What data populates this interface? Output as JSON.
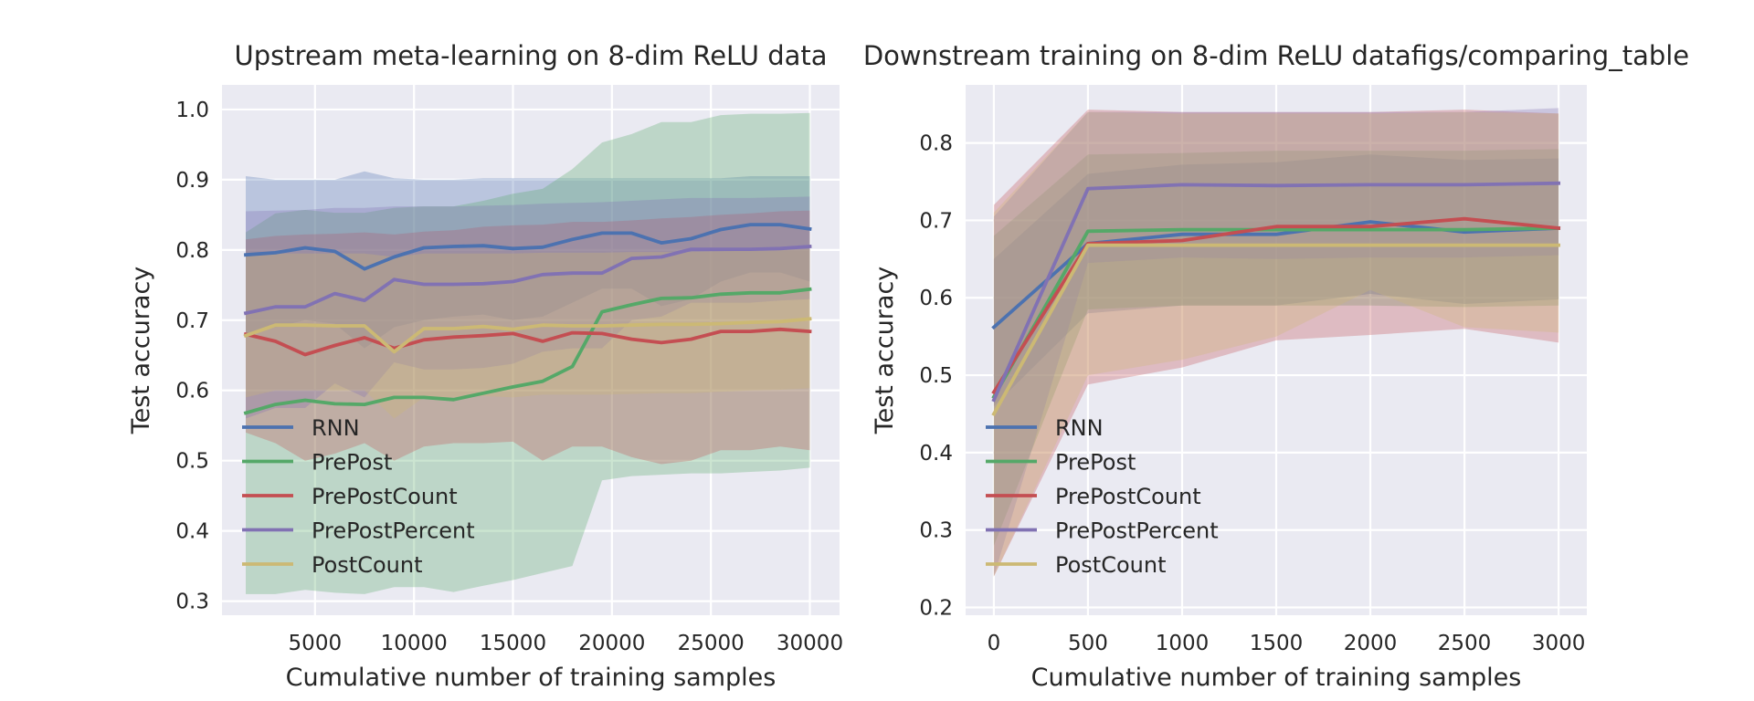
{
  "chart_data": [
    {
      "type": "line",
      "title": "Upstream meta-learning on 8-dim ReLU data",
      "xlabel": "Cumulative number of training samples",
      "ylabel": "Test accuracy",
      "xlim": [
        300,
        31500
      ],
      "ylim": [
        0.28,
        1.035
      ],
      "xticks": [
        5000,
        10000,
        15000,
        20000,
        25000,
        30000
      ],
      "yticks": [
        0.3,
        0.4,
        0.5,
        0.6,
        0.7,
        0.8,
        0.9,
        1.0
      ],
      "grid": true,
      "legend_position": "lower-left",
      "x": [
        1500,
        3000,
        4500,
        6000,
        7500,
        9000,
        10500,
        12000,
        13500,
        15000,
        16500,
        18000,
        19500,
        21000,
        22500,
        24000,
        25500,
        27000,
        28500,
        30000
      ],
      "series": [
        {
          "name": "RNN",
          "color": "#4c72b0",
          "values": [
            0.793,
            0.796,
            0.803,
            0.798,
            0.773,
            0.79,
            0.803,
            0.805,
            0.806,
            0.802,
            0.804,
            0.815,
            0.824,
            0.824,
            0.81,
            0.816,
            0.829,
            0.836,
            0.836,
            0.83
          ],
          "upper": [
            0.905,
            0.9,
            0.9,
            0.9,
            0.912,
            0.902,
            0.9,
            0.9,
            0.902,
            0.902,
            0.902,
            0.902,
            0.902,
            0.902,
            0.902,
            0.902,
            0.902,
            0.905,
            0.905,
            0.905
          ],
          "lower": [
            0.68,
            0.69,
            0.7,
            0.695,
            0.66,
            0.69,
            0.7,
            0.705,
            0.708,
            0.7,
            0.705,
            0.725,
            0.745,
            0.745,
            0.72,
            0.73,
            0.755,
            0.768,
            0.768,
            0.755
          ]
        },
        {
          "name": "PrePost",
          "color": "#55a868",
          "values": [
            0.568,
            0.58,
            0.586,
            0.581,
            0.58,
            0.59,
            0.59,
            0.587,
            0.596,
            0.605,
            0.613,
            0.634,
            0.712,
            0.722,
            0.731,
            0.732,
            0.737,
            0.739,
            0.739,
            0.744
          ],
          "upper": [
            0.825,
            0.852,
            0.857,
            0.853,
            0.853,
            0.86,
            0.862,
            0.862,
            0.87,
            0.88,
            0.887,
            0.915,
            0.953,
            0.965,
            0.982,
            0.982,
            0.992,
            0.994,
            0.994,
            0.995
          ],
          "lower": [
            0.31,
            0.31,
            0.316,
            0.312,
            0.31,
            0.32,
            0.32,
            0.313,
            0.322,
            0.33,
            0.34,
            0.35,
            0.472,
            0.478,
            0.48,
            0.482,
            0.482,
            0.484,
            0.486,
            0.49
          ]
        },
        {
          "name": "PrePostCount",
          "color": "#c44e52",
          "values": [
            0.68,
            0.67,
            0.651,
            0.664,
            0.675,
            0.66,
            0.672,
            0.676,
            0.678,
            0.681,
            0.67,
            0.682,
            0.681,
            0.673,
            0.668,
            0.673,
            0.684,
            0.684,
            0.687,
            0.684
          ],
          "upper": [
            0.815,
            0.82,
            0.822,
            0.823,
            0.825,
            0.822,
            0.826,
            0.828,
            0.833,
            0.835,
            0.836,
            0.84,
            0.84,
            0.842,
            0.845,
            0.847,
            0.85,
            0.852,
            0.855,
            0.856
          ],
          "lower": [
            0.54,
            0.525,
            0.5,
            0.51,
            0.525,
            0.5,
            0.52,
            0.525,
            0.525,
            0.527,
            0.5,
            0.52,
            0.52,
            0.505,
            0.495,
            0.5,
            0.515,
            0.515,
            0.52,
            0.515
          ]
        },
        {
          "name": "PrePostPercent",
          "color": "#8172b3",
          "values": [
            0.71,
            0.719,
            0.719,
            0.738,
            0.728,
            0.758,
            0.751,
            0.751,
            0.752,
            0.755,
            0.765,
            0.767,
            0.767,
            0.788,
            0.79,
            0.801,
            0.801,
            0.801,
            0.802,
            0.805
          ],
          "upper": [
            0.855,
            0.856,
            0.857,
            0.86,
            0.86,
            0.862,
            0.862,
            0.862,
            0.863,
            0.864,
            0.866,
            0.867,
            0.868,
            0.87,
            0.872,
            0.874,
            0.874,
            0.874,
            0.875,
            0.876
          ],
          "lower": [
            0.56,
            0.575,
            0.575,
            0.61,
            0.59,
            0.64,
            0.63,
            0.63,
            0.632,
            0.638,
            0.655,
            0.66,
            0.66,
            0.7,
            0.705,
            0.725,
            0.725,
            0.725,
            0.728,
            0.73
          ]
        },
        {
          "name": "PostCount",
          "color": "#ccb974",
          "values": [
            0.678,
            0.693,
            0.693,
            0.692,
            0.692,
            0.655,
            0.688,
            0.688,
            0.691,
            0.687,
            0.693,
            0.692,
            0.692,
            0.693,
            0.694,
            0.694,
            0.695,
            0.697,
            0.698,
            0.702
          ],
          "upper": [
            0.792,
            0.795,
            0.795,
            0.795,
            0.795,
            0.79,
            0.795,
            0.795,
            0.795,
            0.795,
            0.796,
            0.796,
            0.796,
            0.797,
            0.797,
            0.797,
            0.798,
            0.799,
            0.8,
            0.801
          ],
          "lower": [
            0.59,
            0.6,
            0.6,
            0.6,
            0.6,
            0.56,
            0.59,
            0.59,
            0.592,
            0.59,
            0.594,
            0.594,
            0.594,
            0.595,
            0.596,
            0.596,
            0.598,
            0.6,
            0.601,
            0.603
          ]
        }
      ]
    },
    {
      "type": "line",
      "title": "Downstream training on 8-dim ReLU datafigs/comparing_table",
      "xlabel": "Cumulative number of training samples",
      "ylabel": "Test accuracy",
      "xlim": [
        -150,
        3150
      ],
      "ylim": [
        0.19,
        0.875
      ],
      "xticks": [
        0,
        500,
        1000,
        1500,
        2000,
        2500,
        3000
      ],
      "yticks": [
        0.2,
        0.3,
        0.4,
        0.5,
        0.6,
        0.7,
        0.8
      ],
      "grid": true,
      "legend_position": "lower-left",
      "x": [
        0,
        500,
        1000,
        1500,
        2000,
        2500,
        3000
      ],
      "series": [
        {
          "name": "RNN",
          "color": "#4c72b0",
          "values": [
            0.562,
            0.67,
            0.682,
            0.682,
            0.698,
            0.685,
            0.69
          ],
          "upper": [
            0.65,
            0.76,
            0.772,
            0.775,
            0.785,
            0.778,
            0.78
          ],
          "lower": [
            0.46,
            0.58,
            0.59,
            0.59,
            0.605,
            0.592,
            0.598
          ]
        },
        {
          "name": "PrePost",
          "color": "#55a868",
          "values": [
            0.472,
            0.686,
            0.688,
            0.688,
            0.688,
            0.688,
            0.69
          ],
          "upper": [
            0.68,
            0.785,
            0.787,
            0.79,
            0.79,
            0.79,
            0.792
          ],
          "lower": [
            0.28,
            0.585,
            0.59,
            0.59,
            0.59,
            0.588,
            0.59
          ]
        },
        {
          "name": "PrePostCount",
          "color": "#c44e52",
          "values": [
            0.478,
            0.67,
            0.674,
            0.692,
            0.692,
            0.702,
            0.69
          ],
          "upper": [
            0.72,
            0.843,
            0.84,
            0.84,
            0.84,
            0.843,
            0.838
          ],
          "lower": [
            0.24,
            0.488,
            0.51,
            0.545,
            0.552,
            0.56,
            0.542
          ]
        },
        {
          "name": "PrePostPercent",
          "color": "#8172b3",
          "values": [
            0.468,
            0.741,
            0.746,
            0.745,
            0.746,
            0.746,
            0.748
          ],
          "upper": [
            0.705,
            0.84,
            0.84,
            0.84,
            0.84,
            0.84,
            0.845
          ],
          "lower": [
            0.24,
            0.645,
            0.652,
            0.65,
            0.652,
            0.652,
            0.655
          ]
        },
        {
          "name": "PostCount",
          "color": "#ccb974",
          "values": [
            0.45,
            0.668,
            0.668,
            0.668,
            0.668,
            0.668,
            0.668
          ],
          "upper": [
            0.71,
            0.84,
            0.838,
            0.838,
            0.838,
            0.84,
            0.838
          ],
          "lower": [
            0.24,
            0.5,
            0.52,
            0.55,
            0.61,
            0.562,
            0.555
          ]
        }
      ]
    }
  ]
}
